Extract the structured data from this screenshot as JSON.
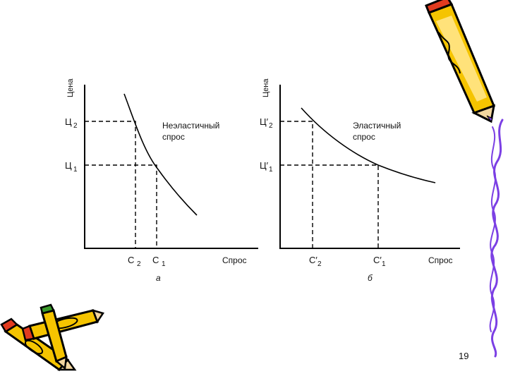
{
  "slide": {
    "page_number": "19"
  },
  "panel_a": {
    "y_axis_label": "Цена",
    "x_axis_label": "Спрос",
    "price_high": "Ц",
    "price_high_sub": "2",
    "price_low": "Ц",
    "price_low_sub": "1",
    "qty_left": "С",
    "qty_left_sub": "2",
    "qty_right": "С",
    "qty_right_sub": "1",
    "curve_label_line1": "Неэластичный",
    "curve_label_line2": "спрос",
    "caption": "а"
  },
  "panel_b": {
    "y_axis_label": "Цена",
    "x_axis_label": "Спрос",
    "price_high": "Ц′",
    "price_high_sub": "2",
    "price_low": "Ц′",
    "price_low_sub": "1",
    "qty_left": "С′",
    "qty_left_sub": "2",
    "qty_right": "С′",
    "qty_right_sub": "1",
    "curve_label_line1": "Эластичный",
    "curve_label_line2": "спрос",
    "caption": "б"
  },
  "decorations": {
    "pencil_top_right": "pencil",
    "pencils_bottom_left": "crossed-pencils",
    "border_line_color": "#7b3fe4",
    "pencil_yellow": "#f5c400",
    "pencil_red": "#e23b1f",
    "pencil_green": "#3a9a2a"
  }
}
